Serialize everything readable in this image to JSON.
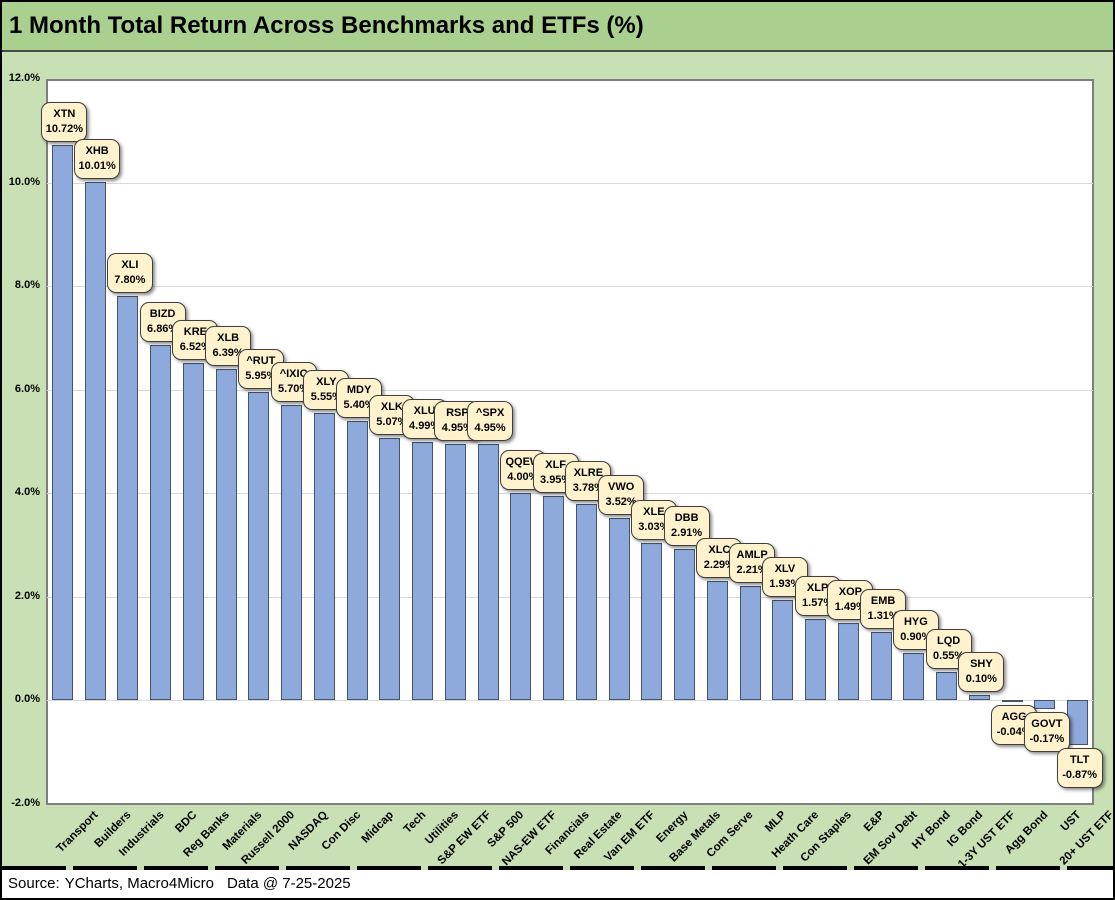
{
  "title": "1 Month Total Return Across Benchmarks and ETFs (%)",
  "footer": {
    "source_label": "Source:",
    "source_value": "YCharts, Macro4Micro",
    "data_stamp": "Data @ 7-25-2025"
  },
  "chart_data": {
    "type": "bar",
    "title": "1 Month Total Return Across Benchmarks and ETFs (%)",
    "xlabel": "",
    "ylabel": "",
    "ylim": [
      -2,
      12
    ],
    "ytick_step": 2,
    "grid": true,
    "legend": false,
    "y_ticks": [
      {
        "value": 12,
        "label": "12.0%"
      },
      {
        "value": 10,
        "label": "10.0%"
      },
      {
        "value": 8,
        "label": "8.0%"
      },
      {
        "value": 6,
        "label": "6.0%"
      },
      {
        "value": 4,
        "label": "4.0%"
      },
      {
        "value": 2,
        "label": "2.0%"
      },
      {
        "value": 0,
        "label": "0.0%"
      },
      {
        "value": -2,
        "label": "-2.0%"
      }
    ],
    "bars": [
      {
        "category": "Transport",
        "ticker": "XTN",
        "value": 10.72,
        "display": "10.72%"
      },
      {
        "category": "Builders",
        "ticker": "XHB",
        "value": 10.01,
        "display": "10.01%"
      },
      {
        "category": "Industrials",
        "ticker": "XLI",
        "value": 7.8,
        "display": "7.80%"
      },
      {
        "category": "BDC",
        "ticker": "BIZD",
        "value": 6.86,
        "display": "6.86%"
      },
      {
        "category": "Reg Banks",
        "ticker": "KRE",
        "value": 6.52,
        "display": "6.52%"
      },
      {
        "category": "Materials",
        "ticker": "XLB",
        "value": 6.39,
        "display": "6.39%"
      },
      {
        "category": "Russell 2000",
        "ticker": "^RUT",
        "value": 5.95,
        "display": "5.95%"
      },
      {
        "category": "NASDAQ",
        "ticker": "^IXIC",
        "value": 5.7,
        "display": "5.70%"
      },
      {
        "category": "Con Disc",
        "ticker": "XLY",
        "value": 5.55,
        "display": "5.55%"
      },
      {
        "category": "Midcap",
        "ticker": "MDY",
        "value": 5.4,
        "display": "5.40%"
      },
      {
        "category": "Tech",
        "ticker": "XLK",
        "value": 5.07,
        "display": "5.07%"
      },
      {
        "category": "Utilities",
        "ticker": "XLU",
        "value": 4.99,
        "display": "4.99%"
      },
      {
        "category": "S&P EW ETF",
        "ticker": "RSP",
        "value": 4.95,
        "display": "4.95%"
      },
      {
        "category": "S&P 500",
        "ticker": "^SPX",
        "value": 4.95,
        "display": "4.95%"
      },
      {
        "category": "NAS-EW ETF",
        "ticker": "QQEW",
        "value": 4.0,
        "display": "4.00%"
      },
      {
        "category": "Financials",
        "ticker": "XLF",
        "value": 3.95,
        "display": "3.95%"
      },
      {
        "category": "Real Estate",
        "ticker": "XLRE",
        "value": 3.78,
        "display": "3.78%"
      },
      {
        "category": "Van EM ETF",
        "ticker": "VWO",
        "value": 3.52,
        "display": "3.52%"
      },
      {
        "category": "Energy",
        "ticker": "XLE",
        "value": 3.03,
        "display": "3.03%"
      },
      {
        "category": "Base Metals",
        "ticker": "DBB",
        "value": 2.91,
        "display": "2.91%"
      },
      {
        "category": "Com Serve",
        "ticker": "XLC",
        "value": 2.29,
        "display": "2.29%"
      },
      {
        "category": "MLP",
        "ticker": "AMLP",
        "value": 2.21,
        "display": "2.21%"
      },
      {
        "category": "Heath Care",
        "ticker": "XLV",
        "value": 1.93,
        "display": "1.93%"
      },
      {
        "category": "Con Staples",
        "ticker": "XLP",
        "value": 1.57,
        "display": "1.57%"
      },
      {
        "category": "E&P",
        "ticker": "XOP",
        "value": 1.49,
        "display": "1.49%"
      },
      {
        "category": "EM Sov Debt",
        "ticker": "EMB",
        "value": 1.31,
        "display": "1.31%"
      },
      {
        "category": "HY Bond",
        "ticker": "HYG",
        "value": 0.9,
        "display": "0.90%"
      },
      {
        "category": "IG Bond",
        "ticker": "LQD",
        "value": 0.55,
        "display": "0.55%"
      },
      {
        "category": "1-3Y UST ETF",
        "ticker": "SHY",
        "value": 0.1,
        "display": "0.10%"
      },
      {
        "category": "Agg Bond",
        "ticker": "AGG",
        "value": -0.04,
        "display": "-0.04%"
      },
      {
        "category": "UST",
        "ticker": "GOVT",
        "value": -0.17,
        "display": "-0.17%"
      },
      {
        "category": "20+ UST ETF",
        "ticker": "TLT",
        "value": -0.87,
        "display": "-0.87%"
      }
    ],
    "colors": {
      "bar_fill": "#8EA9DB",
      "bar_border": "#44546A",
      "callout_bg": "#FFF2CC",
      "callout_border": "#3F3F3F",
      "chart_bg": "#C8E0B4",
      "title_bg": "#A9D08E",
      "plot_bg": "#FFFFFF",
      "gridline": "#D9D9D9"
    }
  }
}
